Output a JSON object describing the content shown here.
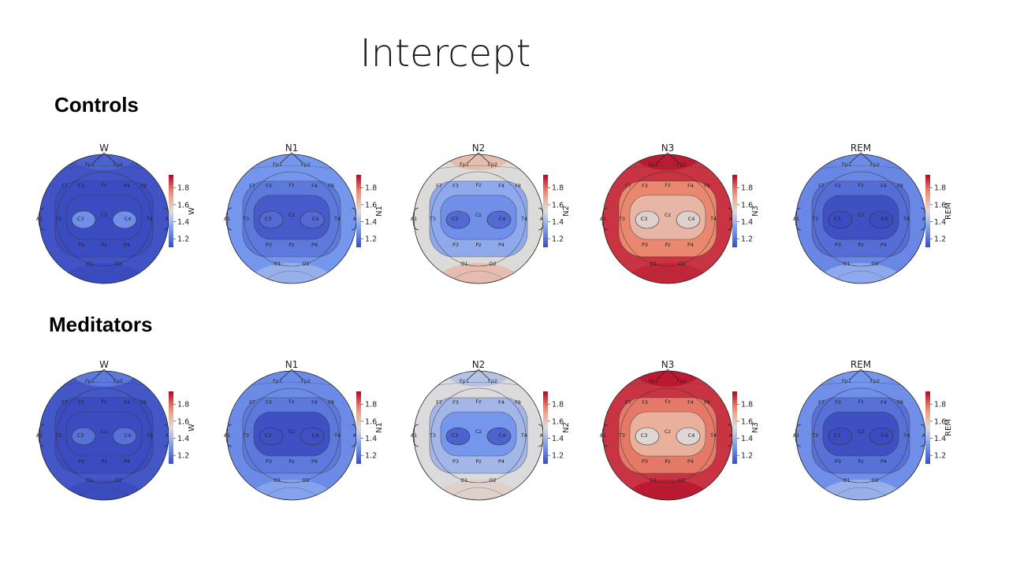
{
  "title": "Intercept",
  "groups": [
    {
      "label": "Controls",
      "panels": [
        {
          "stage": "W",
          "scalp": 1.12,
          "middle": 1.08,
          "inner": 1.04,
          "front": 1.16,
          "back": 1.1,
          "blobs": 1.28
        },
        {
          "stage": "N1",
          "scalp": 1.3,
          "middle": 1.22,
          "inner": 1.14,
          "front": 1.3,
          "back": 1.38,
          "blobs": 1.18
        },
        {
          "stage": "N2",
          "scalp": 1.53,
          "middle": 1.36,
          "inner": 1.28,
          "front": 1.62,
          "back": 1.62,
          "blobs": 1.18
        },
        {
          "stage": "N3",
          "scalp": 1.88,
          "middle": 1.76,
          "inner": 1.64,
          "front": 1.92,
          "back": 1.9,
          "blobs": 1.56
        },
        {
          "stage": "REM",
          "scalp": 1.26,
          "middle": 1.19,
          "inner": 1.11,
          "front": 1.27,
          "back": 1.36,
          "blobs": 1.1
        }
      ]
    },
    {
      "label": "Meditators",
      "panels": [
        {
          "stage": "W",
          "scalp": 1.13,
          "middle": 1.1,
          "inner": 1.04,
          "front": 1.22,
          "back": 1.06,
          "blobs": 1.2
        },
        {
          "stage": "N1",
          "scalp": 1.27,
          "middle": 1.22,
          "inner": 1.11,
          "front": 1.27,
          "back": 1.34,
          "blobs": 1.11
        },
        {
          "stage": "N2",
          "scalp": 1.52,
          "middle": 1.4,
          "inner": 1.3,
          "front": 1.44,
          "back": 1.56,
          "blobs": 1.16
        },
        {
          "stage": "N3",
          "scalp": 1.88,
          "middle": 1.78,
          "inner": 1.66,
          "front": 1.92,
          "back": 1.92,
          "blobs": 1.54
        },
        {
          "stage": "REM",
          "scalp": 1.28,
          "middle": 1.2,
          "inner": 1.11,
          "front": 1.3,
          "back": 1.38,
          "blobs": 1.1
        }
      ]
    }
  ],
  "chart_data": {
    "type": "heatmap",
    "description": "EEG scalp topographic maps of intercept values per sleep stage",
    "colormap": "coolwarm",
    "colorbar_ticks": [
      "1.2",
      "1.4",
      "1.6",
      "1.8"
    ],
    "colorbar_range": [
      1.1,
      1.95
    ],
    "electrodes": [
      "Fp1",
      "Fp2",
      "F7",
      "F3",
      "Fz",
      "F4",
      "F8",
      "A1",
      "T3",
      "C3",
      "Cz",
      "C4",
      "T4",
      "A2",
      "P3",
      "Pz",
      "P4",
      "O1",
      "O2"
    ]
  }
}
